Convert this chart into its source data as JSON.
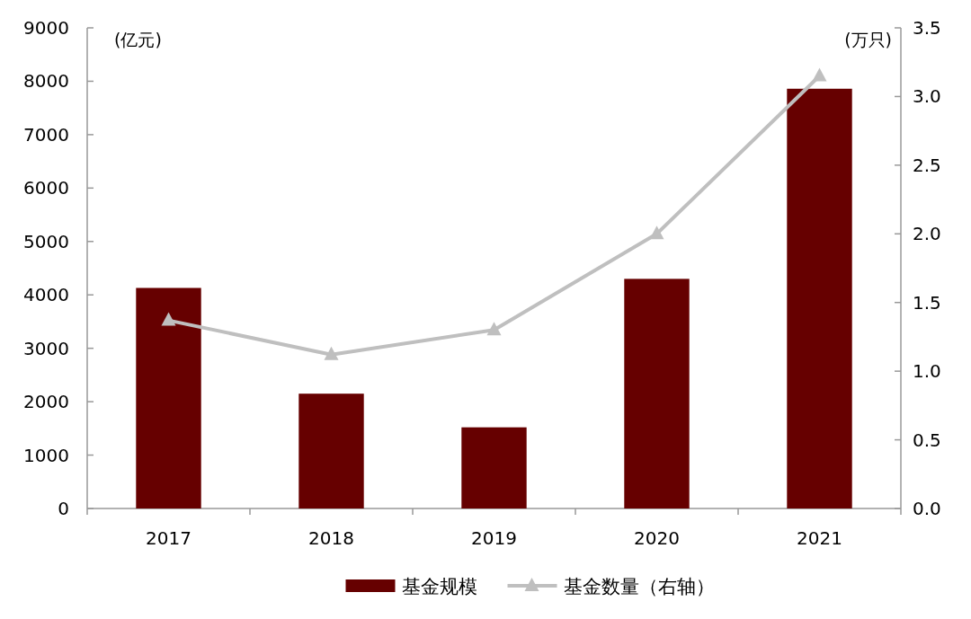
{
  "chart_data": {
    "type": "bar",
    "categories": [
      "2017",
      "2018",
      "2019",
      "2020",
      "2021"
    ],
    "ylabel": "(亿元)",
    "y2label": "(万只)",
    "series": [
      {
        "name": "基金规模",
        "color": "#660000",
        "values": [
          4130,
          2150,
          1520,
          4300,
          7860
        ]
      },
      {
        "name": "基金数量（右轴）",
        "type": "line",
        "axis": "y2",
        "color": "#bfbfbf",
        "marker": "triangle",
        "values": [
          1.37,
          1.12,
          1.3,
          2.0,
          3.15
        ]
      }
    ],
    "ylim": [
      0,
      9000
    ],
    "yticks": [
      0,
      1000,
      2000,
      3000,
      4000,
      5000,
      6000,
      7000,
      8000,
      9000
    ],
    "y2lim": [
      0,
      3.5
    ],
    "y2ticks": [
      {
        "value": 0,
        "label": "0.0"
      },
      {
        "value": 0.5,
        "label": "0.5"
      },
      {
        "value": 1,
        "label": "1.0"
      },
      {
        "value": 1.5,
        "label": "1.5"
      },
      {
        "value": 2,
        "label": "2.0"
      },
      {
        "value": 2.5,
        "label": "2.5"
      },
      {
        "value": 3,
        "label": "3.0"
      },
      {
        "value": 3.5,
        "label": "3.5"
      }
    ],
    "legend": "bottom"
  }
}
